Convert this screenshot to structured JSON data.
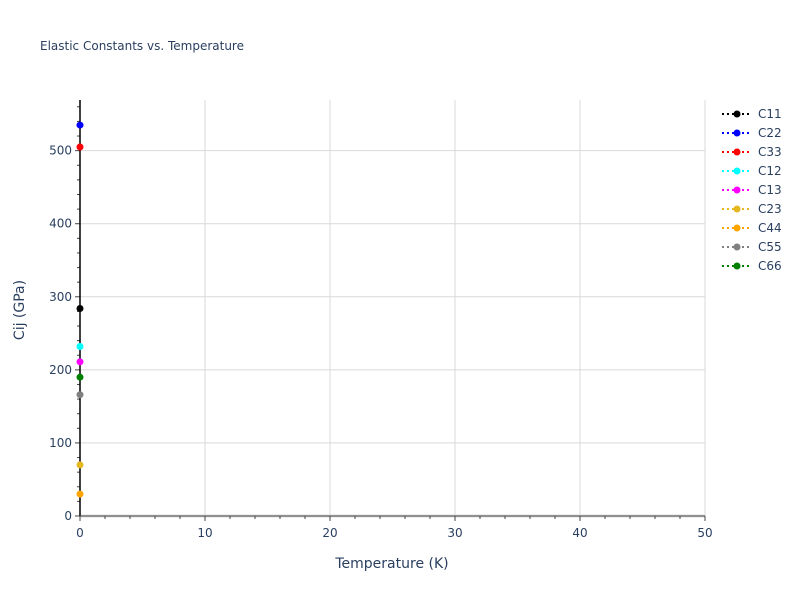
{
  "chart_data": {
    "type": "scatter",
    "title": "Elastic Constants vs. Temperature",
    "xlabel": "Temperature (K)",
    "ylabel": "Cij (GPa)",
    "xlim": [
      0,
      50
    ],
    "ylim": [
      -5,
      570
    ],
    "xticks": [
      0,
      10,
      20,
      30,
      40,
      50
    ],
    "yticks": [
      0,
      100,
      200,
      300,
      400,
      500
    ],
    "grid": true,
    "legend_position": "right",
    "line_style": "dotted",
    "series": [
      {
        "name": "C11",
        "color": "#000000",
        "x": [
          0
        ],
        "y": [
          284
        ]
      },
      {
        "name": "C22",
        "color": "#0000ff",
        "x": [
          0
        ],
        "y": [
          535
        ]
      },
      {
        "name": "C33",
        "color": "#ff0000",
        "x": [
          0
        ],
        "y": [
          505
        ]
      },
      {
        "name": "C12",
        "color": "#00ffff",
        "x": [
          0
        ],
        "y": [
          232
        ]
      },
      {
        "name": "C13",
        "color": "#ff00ff",
        "x": [
          0
        ],
        "y": [
          211
        ]
      },
      {
        "name": "C23",
        "color": "#e6b820",
        "x": [
          0
        ],
        "y": [
          70
        ]
      },
      {
        "name": "C44",
        "color": "#ffa500",
        "x": [
          0
        ],
        "y": [
          30
        ]
      },
      {
        "name": "C55",
        "color": "#808080",
        "x": [
          0
        ],
        "y": [
          166
        ]
      },
      {
        "name": "C66",
        "color": "#008000",
        "x": [
          0
        ],
        "y": [
          190
        ]
      }
    ]
  }
}
